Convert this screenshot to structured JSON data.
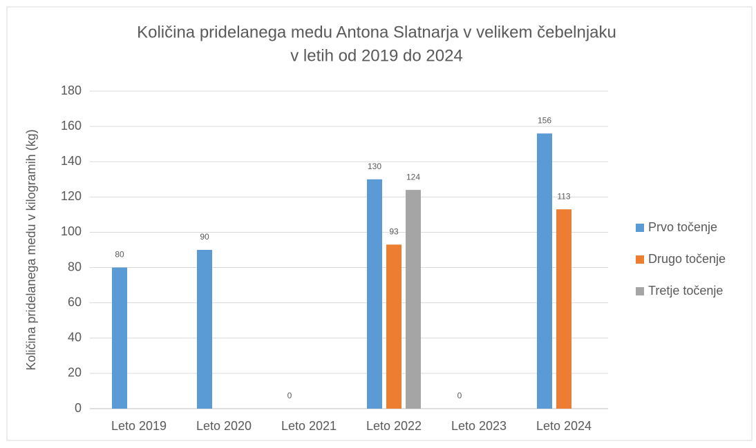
{
  "chart_data": {
    "type": "bar",
    "title": [
      "Količina pridelanega medu Antona Slatnarja v velikem čebelnjaku",
      "v letih od 2019 do 2024"
    ],
    "y_label": "Količina pridelanega medu v kilogramih (kg)",
    "categories": [
      "Leto 2019",
      "Leto 2020",
      "Leto 2021",
      "Leto 2022",
      "Leto 2023",
      "Leto 2024"
    ],
    "series": [
      {
        "name": "Prvo točenje",
        "color": "#5b9bd5",
        "values": [
          80,
          90,
          0,
          130,
          0,
          156
        ]
      },
      {
        "name": "Drugo točenje",
        "color": "#ed7d31",
        "values": [
          null,
          null,
          null,
          93,
          null,
          113
        ]
      },
      {
        "name": "Tretje točenje",
        "color": "#a5a5a5",
        "values": [
          null,
          null,
          null,
          124,
          null,
          null
        ]
      }
    ],
    "ylim": [
      0,
      180
    ],
    "yticks": [
      0,
      20,
      40,
      60,
      80,
      100,
      120,
      140,
      160,
      180
    ],
    "grid": true,
    "legend": "right"
  }
}
